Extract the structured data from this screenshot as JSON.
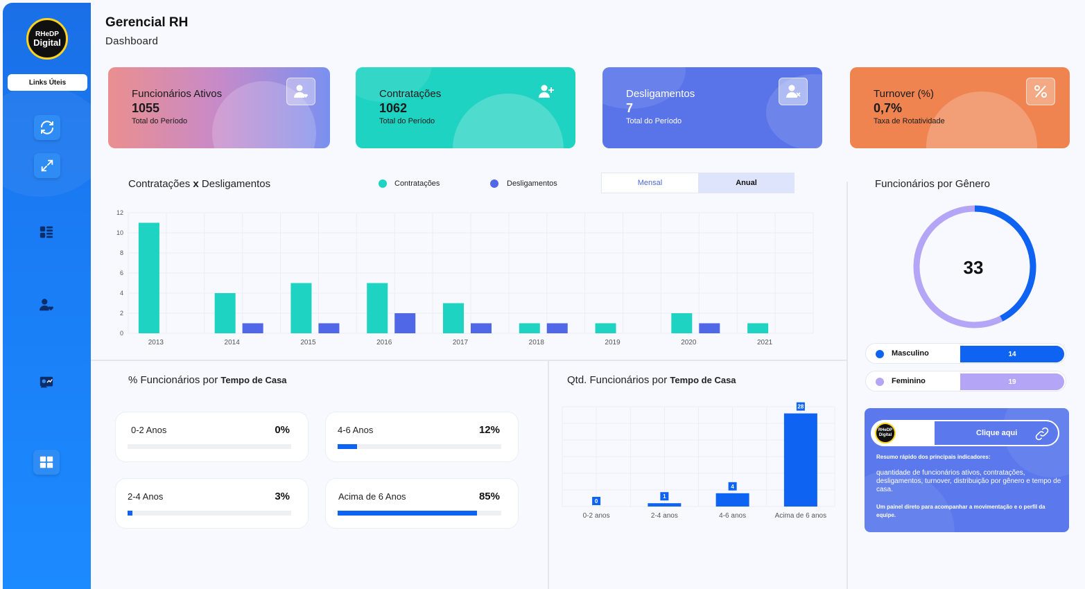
{
  "app": {
    "title": "Gerencial RH",
    "subtitle": "Dashboard",
    "logo_text_1": "RHeDP",
    "logo_text_2": "Digital"
  },
  "sidebar": {
    "links_label": "Links Úteis",
    "items": [
      {
        "icon": "refresh-icon"
      },
      {
        "icon": "expand-icon"
      },
      {
        "icon": "grid-list-icon"
      },
      {
        "icon": "user-heart-icon"
      },
      {
        "icon": "user-chart-icon"
      },
      {
        "icon": "dashboard-icon"
      }
    ]
  },
  "kpis": [
    {
      "label": "Funcionários Ativos",
      "value": "1055",
      "sub": "Total do Período",
      "icon": "user-heart-icon"
    },
    {
      "label": "Contratações",
      "value": "1062",
      "sub": "Total do Período",
      "icon": "user-plus-icon"
    },
    {
      "label": "Desligamentos",
      "value": "7",
      "sub": "Total do Período",
      "icon": "user-remove-icon"
    },
    {
      "label": "Turnover (%)",
      "value": "0,7%",
      "sub": "Taxa de Rotatividade",
      "icon": "percent-icon"
    }
  ],
  "hires_chart": {
    "title_a": "Contratações ",
    "title_x": "x",
    "title_b": " Desligamentos",
    "legend": [
      "Contratações",
      "Desligamentos"
    ],
    "toggle": {
      "monthly": "Mensal",
      "annual": "Anual",
      "selected": "Anual"
    },
    "colors": {
      "hires": "#1ed3c1",
      "terminations": "#5068e8"
    }
  },
  "gender": {
    "title": "Funcionários por Gênero",
    "total": "33",
    "rows": [
      {
        "label": "Masculino",
        "value": "14",
        "color": "#0f63f2"
      },
      {
        "label": "Feminino",
        "value": "19",
        "color": "#b4a5f6"
      }
    ]
  },
  "tenure_pct": {
    "title_a": "% Funcionários por ",
    "title_b": "Tempo de Casa",
    "items": [
      {
        "label": "0-2 Anos",
        "value": "0%",
        "pct": 0
      },
      {
        "label": "4-6 Anos",
        "value": "12%",
        "pct": 12
      },
      {
        "label": "2-4 Anos",
        "value": "3%",
        "pct": 3
      },
      {
        "label": "Acima de 6 Anos",
        "value": "85%",
        "pct": 85
      }
    ]
  },
  "tenure_qty": {
    "title_a": "Qtd. Funcionários por ",
    "title_b": "Tempo de Casa"
  },
  "info": {
    "button": "Clique aqui",
    "logo_text": "RHeDP Digital",
    "t1": "Resumo rápido dos principais indicadores:",
    "t2": "quantidade de funcionários ativos, contratações, desligamentos, turnover, distribuição por gênero e tempo de casa.",
    "t3": "Um painel direto para acompanhar a movimentação e o perfil da equipe."
  },
  "chart_data": [
    {
      "type": "bar",
      "title": "Contratações x Desligamentos",
      "categories": [
        "2013",
        "2014",
        "2015",
        "2016",
        "2017",
        "2018",
        "2019",
        "2020",
        "2021"
      ],
      "series": [
        {
          "name": "Contratações",
          "values": [
            11,
            4,
            5,
            5,
            3,
            1,
            1,
            2,
            1
          ]
        },
        {
          "name": "Desligamentos",
          "values": [
            0,
            1,
            1,
            2,
            1,
            1,
            0,
            1,
            0
          ]
        }
      ],
      "ylim": [
        0,
        12
      ],
      "yticks": [
        0,
        2,
        4,
        6,
        8,
        10,
        12
      ],
      "grid": true
    },
    {
      "type": "bar",
      "title": "Qtd. Funcionários por Tempo de Casa",
      "categories": [
        "0-2 anos",
        "2-4 anos",
        "4-6 anos",
        "Acima de 6 anos"
      ],
      "values": [
        0,
        1,
        4,
        28
      ],
      "ylim": [
        0,
        30
      ],
      "grid": true
    }
  ]
}
